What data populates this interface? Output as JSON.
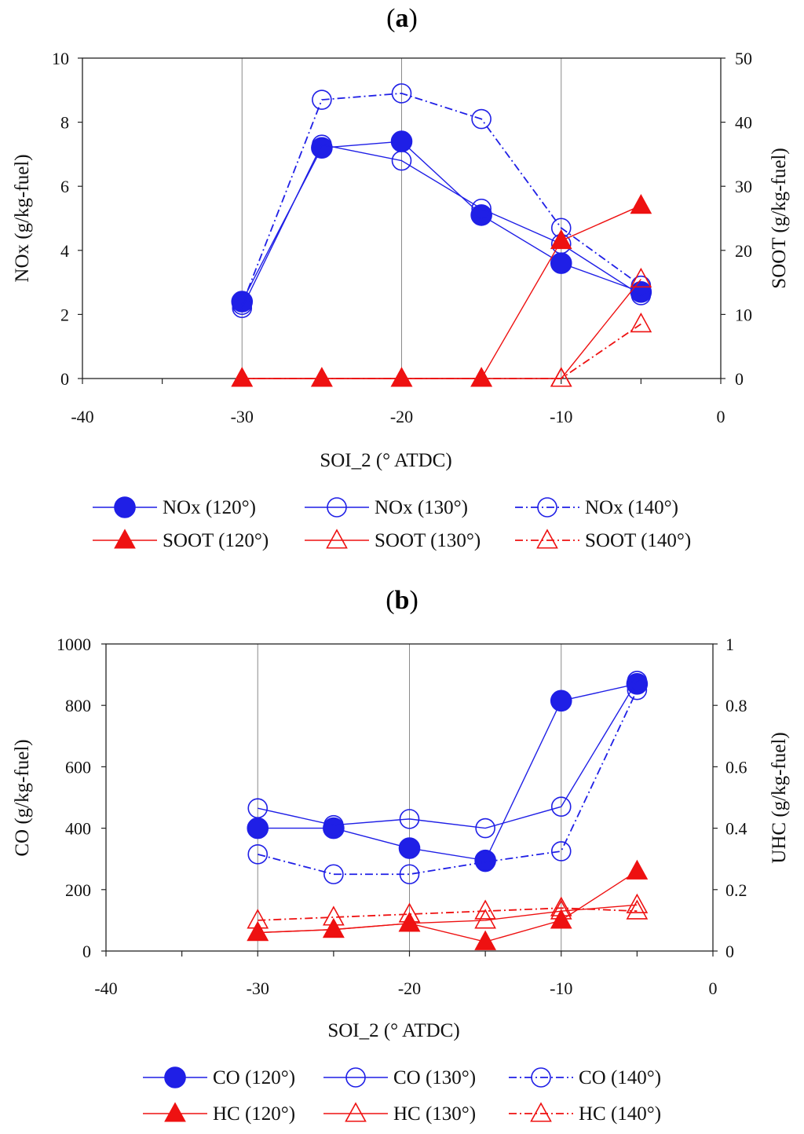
{
  "chart_data": [
    {
      "panel_label": "a",
      "type": "line",
      "xlabel": "SOI_2 (° ATDC)",
      "ylabel_left": "NOx (g/kg-fuel)",
      "ylabel_right": "SOOT (g/kg-fuel)",
      "xlim": [
        -40,
        0
      ],
      "xticks": [
        -40,
        -30,
        -20,
        -10,
        0
      ],
      "ylim_left": [
        0,
        10
      ],
      "yticks_left": [
        0,
        2,
        4,
        6,
        8,
        10
      ],
      "ylim_right": [
        0,
        50
      ],
      "yticks_right": [
        0,
        10,
        20,
        30,
        40,
        50
      ],
      "x": [
        -30,
        -25,
        -20,
        -15,
        -10,
        -5
      ],
      "grid": "vertical",
      "series": [
        {
          "name": "NOx (120°)",
          "axis": "left",
          "color": "#1f1fe6",
          "marker": "circle",
          "filled": true,
          "dash": "solid",
          "values": [
            2.4,
            7.2,
            7.4,
            5.1,
            3.6,
            2.7
          ]
        },
        {
          "name": "NOx (130°)",
          "axis": "left",
          "color": "#1f1fe6",
          "marker": "circle",
          "filled": false,
          "dash": "solid",
          "values": [
            2.2,
            7.3,
            6.8,
            5.3,
            4.2,
            2.6
          ]
        },
        {
          "name": "NOx (140°)",
          "axis": "left",
          "color": "#1f1fe6",
          "marker": "circle",
          "filled": false,
          "dash": "dashdot",
          "values": [
            2.3,
            8.7,
            8.9,
            8.1,
            4.7,
            2.9
          ]
        },
        {
          "name": "SOOT (120°)",
          "axis": "right",
          "color": "#ee1111",
          "marker": "triangle",
          "filled": true,
          "dash": "solid",
          "values": [
            0,
            0,
            0,
            0,
            21.5,
            27
          ]
        },
        {
          "name": "SOOT (130°)",
          "axis": "right",
          "color": "#ee1111",
          "marker": "triangle",
          "filled": false,
          "dash": "solid",
          "values": [
            0,
            0,
            0,
            0,
            0,
            15.5
          ]
        },
        {
          "name": "SOOT (140°)",
          "axis": "right",
          "color": "#ee1111",
          "marker": "triangle",
          "filled": false,
          "dash": "dashdot",
          "values": [
            0,
            0,
            0,
            0,
            0,
            8.5
          ]
        }
      ]
    },
    {
      "panel_label": "b",
      "type": "line",
      "xlabel": "SOI_2 (° ATDC)",
      "ylabel_left": "CO (g/kg-fuel)",
      "ylabel_right": "UHC (g/kg-fuel)",
      "xlim": [
        -40,
        0
      ],
      "xticks": [
        -40,
        -30,
        -20,
        -10,
        0
      ],
      "ylim_left": [
        0,
        1000
      ],
      "yticks_left": [
        0,
        200,
        400,
        600,
        800,
        1000
      ],
      "ylim_right": [
        0,
        1
      ],
      "yticks_right": [
        0,
        0.2,
        0.4,
        0.6,
        0.8,
        1
      ],
      "x": [
        -30,
        -25,
        -20,
        -15,
        -10,
        -5
      ],
      "grid": "vertical",
      "series": [
        {
          "name": "CO (120°)",
          "axis": "left",
          "color": "#1f1fe6",
          "marker": "circle",
          "filled": true,
          "dash": "solid",
          "values": [
            400,
            400,
            335,
            295,
            815,
            870
          ]
        },
        {
          "name": "CO (130°)",
          "axis": "left",
          "color": "#1f1fe6",
          "marker": "circle",
          "filled": false,
          "dash": "solid",
          "values": [
            465,
            410,
            430,
            400,
            470,
            880
          ]
        },
        {
          "name": "CO (140°)",
          "axis": "left",
          "color": "#1f1fe6",
          "marker": "circle",
          "filled": false,
          "dash": "dashdot",
          "values": [
            315,
            250,
            250,
            290,
            325,
            850
          ]
        },
        {
          "name": "HC (120°)",
          "axis": "right",
          "color": "#ee1111",
          "marker": "triangle",
          "filled": true,
          "dash": "solid",
          "values": [
            0.06,
            0.07,
            0.09,
            0.03,
            0.1,
            0.26
          ]
        },
        {
          "name": "HC (130°)",
          "axis": "right",
          "color": "#ee1111",
          "marker": "triangle",
          "filled": false,
          "dash": "solid",
          "values": [
            0.06,
            0.07,
            0.09,
            0.1,
            0.13,
            0.15
          ]
        },
        {
          "name": "HC (140°)",
          "axis": "right",
          "color": "#ee1111",
          "marker": "triangle",
          "filled": false,
          "dash": "dashdot",
          "values": [
            0.1,
            0.11,
            0.12,
            0.13,
            0.14,
            0.13
          ]
        }
      ]
    }
  ]
}
